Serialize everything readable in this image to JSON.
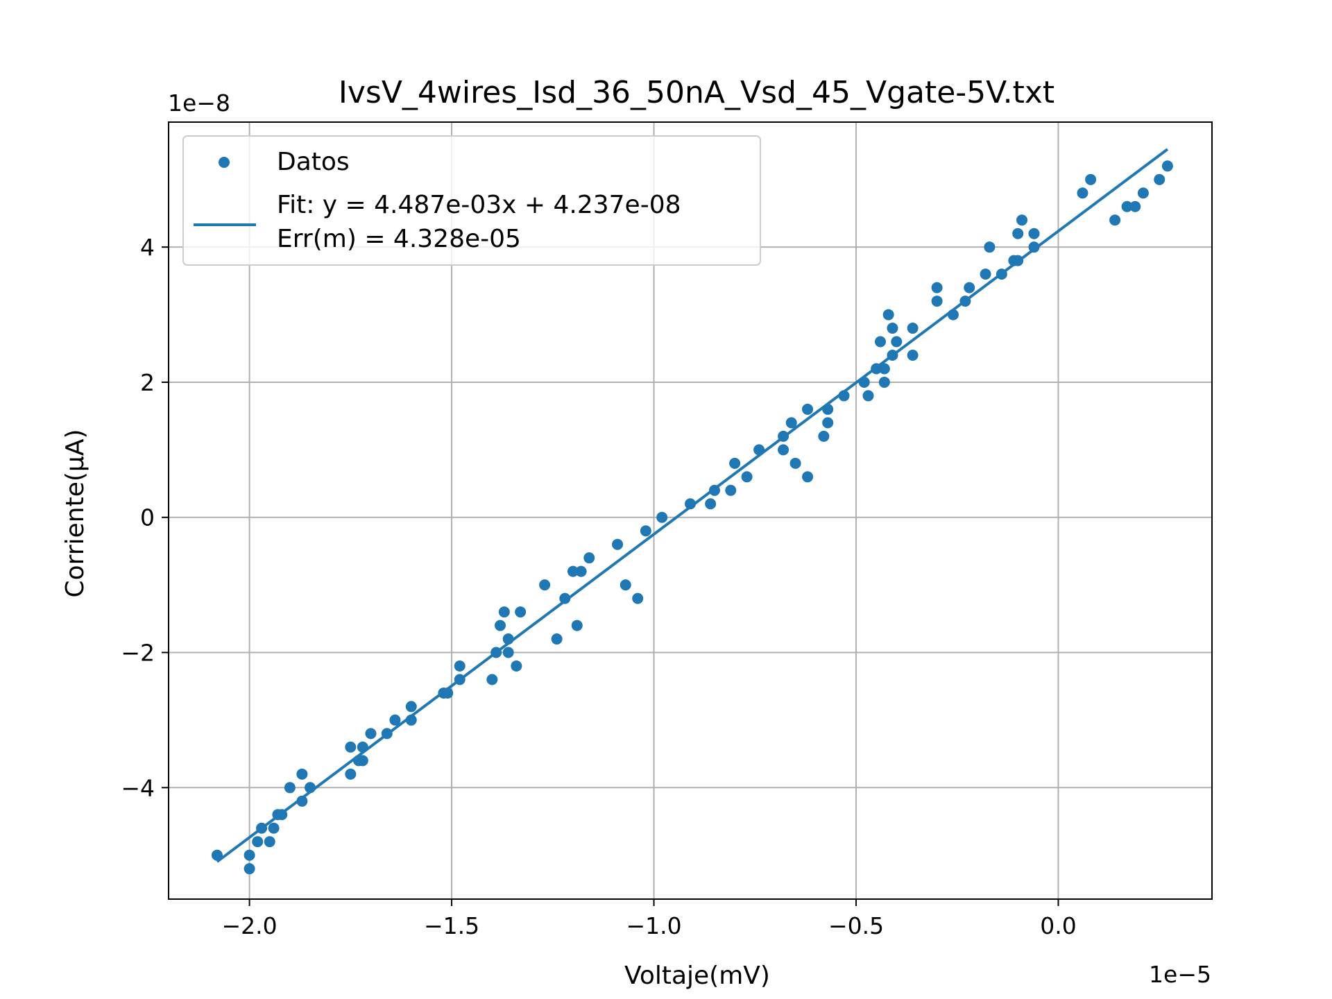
{
  "chart_data": {
    "type": "scatter",
    "title": "IvsV_4wires_Isd_36_50nA_Vsd_45_Vgate-5V.txt",
    "xlabel": "Voltaje(mV)",
    "ylabel": "Corriente(μA)",
    "x_multiplier": "1e−5",
    "y_multiplier": "1e−8",
    "xlim": [
      -2.2e-05,
      3.8e-06
    ],
    "ylim": [
      -5.65e-08,
      5.85e-08
    ],
    "grid": true,
    "legend_placement": "top-left",
    "x_ticks": [
      {
        "value": -2e-05,
        "label": "−2.0"
      },
      {
        "value": -1.5e-05,
        "label": "−1.5"
      },
      {
        "value": -1e-05,
        "label": "−1.0"
      },
      {
        "value": -5e-06,
        "label": "−0.5"
      },
      {
        "value": 0.0,
        "label": "0.0"
      }
    ],
    "y_ticks": [
      {
        "value": -4e-08,
        "label": "−4"
      },
      {
        "value": -2e-08,
        "label": "−2"
      },
      {
        "value": 0.0,
        "label": "0"
      },
      {
        "value": 2e-08,
        "label": "2"
      },
      {
        "value": 4e-08,
        "label": "4"
      }
    ],
    "series": [
      {
        "name": "Datos",
        "type": "scatter",
        "color": "#1f77b4",
        "points": [
          [
            -2.08e-05,
            -5e-08
          ],
          [
            -2e-05,
            -5.2e-08
          ],
          [
            -2e-05,
            -5e-08
          ],
          [
            -1.98e-05,
            -4.8e-08
          ],
          [
            -1.97e-05,
            -4.6e-08
          ],
          [
            -1.95e-05,
            -4.8e-08
          ],
          [
            -1.94e-05,
            -4.6e-08
          ],
          [
            -1.93e-05,
            -4.4e-08
          ],
          [
            -1.92e-05,
            -4.4e-08
          ],
          [
            -1.9e-05,
            -4e-08
          ],
          [
            -1.87e-05,
            -3.8e-08
          ],
          [
            -1.87e-05,
            -4.2e-08
          ],
          [
            -1.85e-05,
            -4e-08
          ],
          [
            -1.75e-05,
            -3.4e-08
          ],
          [
            -1.75e-05,
            -3.8e-08
          ],
          [
            -1.73e-05,
            -3.6e-08
          ],
          [
            -1.72e-05,
            -3.4e-08
          ],
          [
            -1.72e-05,
            -3.6e-08
          ],
          [
            -1.7e-05,
            -3.2e-08
          ],
          [
            -1.66e-05,
            -3.2e-08
          ],
          [
            -1.64e-05,
            -3e-08
          ],
          [
            -1.6e-05,
            -2.8e-08
          ],
          [
            -1.6e-05,
            -3e-08
          ],
          [
            -1.52e-05,
            -2.6e-08
          ],
          [
            -1.51e-05,
            -2.6e-08
          ],
          [
            -1.48e-05,
            -2.4e-08
          ],
          [
            -1.48e-05,
            -2.2e-08
          ],
          [
            -1.4e-05,
            -2.4e-08
          ],
          [
            -1.39e-05,
            -2e-08
          ],
          [
            -1.38e-05,
            -1.6e-08
          ],
          [
            -1.37e-05,
            -1.4e-08
          ],
          [
            -1.36e-05,
            -2e-08
          ],
          [
            -1.36e-05,
            -1.8e-08
          ],
          [
            -1.34e-05,
            -2.2e-08
          ],
          [
            -1.33e-05,
            -1.4e-08
          ],
          [
            -1.27e-05,
            -1e-08
          ],
          [
            -1.24e-05,
            -1.8e-08
          ],
          [
            -1.22e-05,
            -1.2e-08
          ],
          [
            -1.2e-05,
            -8e-09
          ],
          [
            -1.19e-05,
            -1.6e-08
          ],
          [
            -1.18e-05,
            -8e-09
          ],
          [
            -1.16e-05,
            -6e-09
          ],
          [
            -1.09e-05,
            -4e-09
          ],
          [
            -1.07e-05,
            -1e-08
          ],
          [
            -1.04e-05,
            -1.2e-08
          ],
          [
            -1.02e-05,
            -2e-09
          ],
          [
            -9.8e-06,
            0.0
          ],
          [
            -9.1e-06,
            2e-09
          ],
          [
            -8.6e-06,
            2e-09
          ],
          [
            -8.5e-06,
            4e-09
          ],
          [
            -8.1e-06,
            4e-09
          ],
          [
            -8e-06,
            8e-09
          ],
          [
            -7.7e-06,
            6e-09
          ],
          [
            -7.4e-06,
            1e-08
          ],
          [
            -6.8e-06,
            1e-08
          ],
          [
            -6.8e-06,
            1.2e-08
          ],
          [
            -6.6e-06,
            1.4e-08
          ],
          [
            -6.5e-06,
            8e-09
          ],
          [
            -6.2e-06,
            6e-09
          ],
          [
            -6.2e-06,
            1.6e-08
          ],
          [
            -5.8e-06,
            1.2e-08
          ],
          [
            -5.7e-06,
            1.6e-08
          ],
          [
            -5.7e-06,
            1.4e-08
          ],
          [
            -5.3e-06,
            1.8e-08
          ],
          [
            -4.8e-06,
            2e-08
          ],
          [
            -4.7e-06,
            1.8e-08
          ],
          [
            -4.5e-06,
            2.2e-08
          ],
          [
            -4.4e-06,
            2.6e-08
          ],
          [
            -4.3e-06,
            2.2e-08
          ],
          [
            -4.3e-06,
            2e-08
          ],
          [
            -4.2e-06,
            3e-08
          ],
          [
            -4.1e-06,
            2.4e-08
          ],
          [
            -4.1e-06,
            2.8e-08
          ],
          [
            -4e-06,
            2.6e-08
          ],
          [
            -3.6e-06,
            2.8e-08
          ],
          [
            -3.6e-06,
            2.4e-08
          ],
          [
            -3e-06,
            3.2e-08
          ],
          [
            -3e-06,
            3.4e-08
          ],
          [
            -2.6e-06,
            3e-08
          ],
          [
            -2.3e-06,
            3.2e-08
          ],
          [
            -2.2e-06,
            3.4e-08
          ],
          [
            -1.8e-06,
            3.6e-08
          ],
          [
            -1.7e-06,
            4e-08
          ],
          [
            -1.4e-06,
            3.6e-08
          ],
          [
            -1.1e-06,
            3.8e-08
          ],
          [
            -1e-06,
            3.8e-08
          ],
          [
            -1e-06,
            4.2e-08
          ],
          [
            -9e-07,
            4.4e-08
          ],
          [
            -6e-07,
            4.2e-08
          ],
          [
            -6e-07,
            4e-08
          ],
          [
            6e-07,
            4.8e-08
          ],
          [
            8e-07,
            5e-08
          ],
          [
            1.4e-06,
            4.4e-08
          ],
          [
            1.7e-06,
            4.6e-08
          ],
          [
            1.9e-06,
            4.6e-08
          ],
          [
            2.1e-06,
            4.8e-08
          ],
          [
            2.5e-06,
            5e-08
          ],
          [
            2.7e-06,
            5.2e-08
          ]
        ]
      },
      {
        "name": "Fit: y = 4.487e-03x + 4.237e-08",
        "name_line2": "Err(m) = 4.328e-05",
        "type": "line",
        "color": "#1f77b4",
        "slope": 0.004487,
        "intercept": 4.237e-08,
        "x_range": [
          -2.08e-05,
          2.7e-06
        ]
      }
    ]
  }
}
